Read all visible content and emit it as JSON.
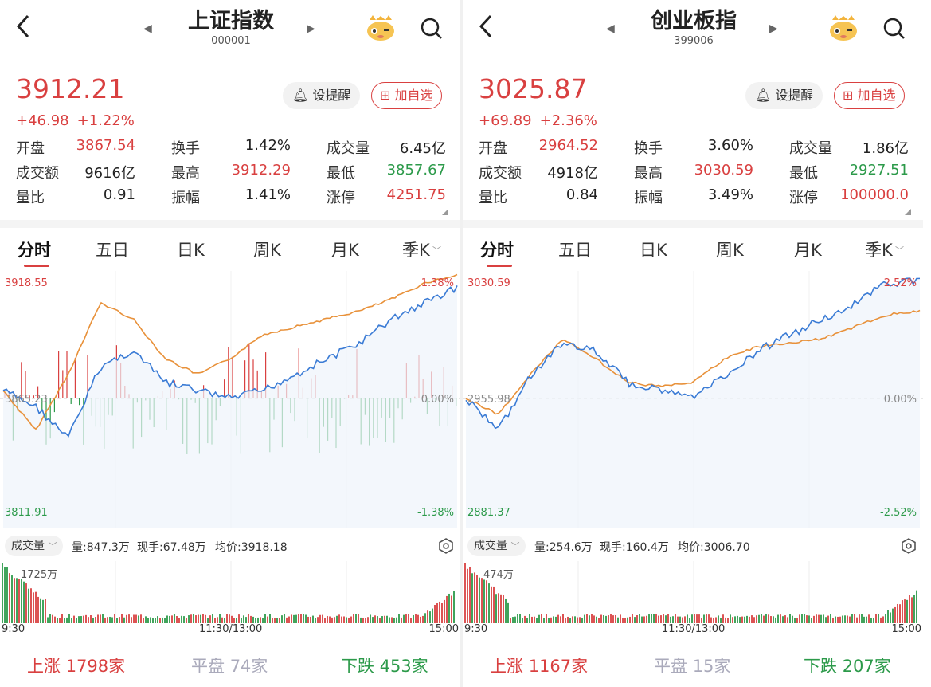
{
  "panels": [
    {
      "title": "上证指数",
      "code": "000001",
      "price": "3912.21",
      "change_abs": "+46.98",
      "change_pct": "+1.22%",
      "alert_btn": "设提醒",
      "add_btn": "加自选",
      "stats": [
        [
          {
            "label": "开盘",
            "value": "3867.54",
            "color": "red"
          },
          {
            "label": "换手",
            "value": "1.42%",
            "color": "dark"
          },
          {
            "label": "成交量",
            "value": "6.45亿",
            "color": "dark"
          }
        ],
        [
          {
            "label": "成交额",
            "value": "9616亿",
            "color": "dark"
          },
          {
            "label": "最高",
            "value": "3912.29",
            "color": "red"
          },
          {
            "label": "最低",
            "value": "3857.67",
            "color": "green"
          }
        ],
        [
          {
            "label": "量比",
            "value": "0.91",
            "color": "dark"
          },
          {
            "label": "振幅",
            "value": "1.41%",
            "color": "dark"
          },
          {
            "label": "涨停",
            "value": "4251.75",
            "color": "red"
          }
        ]
      ],
      "tabs": [
        "分时",
        "五日",
        "日K",
        "周K",
        "月K",
        "季K"
      ],
      "chart": {
        "y_top": "3918.55",
        "y_mid": "3865.23",
        "y_bottom": "3811.91",
        "pct_top": "1.38%",
        "pct_mid": "0.00%",
        "pct_bottom": "-1.38%"
      },
      "vol_tag": "成交量",
      "vol_info": {
        "volume": "量:847.3万",
        "current": "现手:67.48万",
        "avg": "均价:3918.18"
      },
      "vol_max": "1725万",
      "times": [
        "9:30",
        "11:30/13:00",
        "15:00"
      ],
      "breadth": {
        "up_label": "上涨",
        "up": "1798家",
        "flat_label": "平盘",
        "flat": "74家",
        "down_label": "下跌",
        "down": "453家"
      }
    },
    {
      "title": "创业板指",
      "code": "399006",
      "price": "3025.87",
      "change_abs": "+69.89",
      "change_pct": "+2.36%",
      "alert_btn": "设提醒",
      "add_btn": "加自选",
      "stats": [
        [
          {
            "label": "开盘",
            "value": "2964.52",
            "color": "red"
          },
          {
            "label": "换手",
            "value": "3.60%",
            "color": "dark"
          },
          {
            "label": "成交量",
            "value": "1.86亿",
            "color": "dark"
          }
        ],
        [
          {
            "label": "成交额",
            "value": "4918亿",
            "color": "dark"
          },
          {
            "label": "最高",
            "value": "3030.59",
            "color": "red"
          },
          {
            "label": "最低",
            "value": "2927.51",
            "color": "green"
          }
        ],
        [
          {
            "label": "量比",
            "value": "0.84",
            "color": "dark"
          },
          {
            "label": "振幅",
            "value": "3.49%",
            "color": "dark"
          },
          {
            "label": "涨停",
            "value": "100000.0",
            "color": "red"
          }
        ]
      ],
      "tabs": [
        "分时",
        "五日",
        "日K",
        "周K",
        "月K",
        "季K"
      ],
      "chart": {
        "y_top": "3030.59",
        "y_mid": "2955.98",
        "y_bottom": "2881.37",
        "pct_top": "2.52%",
        "pct_mid": "0.00%",
        "pct_bottom": "-2.52%"
      },
      "vol_tag": "成交量",
      "vol_info": {
        "volume": "量:254.6万",
        "current": "现手:160.4万",
        "avg": "均价:3006.70"
      },
      "vol_max": "474万",
      "times": [
        "9:30",
        "11:30/13:00",
        "15:00"
      ],
      "breadth": {
        "up_label": "上涨",
        "up": "1167家",
        "flat_label": "平盘",
        "flat": "15家",
        "down_label": "下跌",
        "down": "207家"
      }
    }
  ],
  "colors": {
    "up": "#d94040",
    "down": "#2c9a4a",
    "price_line": "#3a7bd5",
    "avg_line": "#e8913a"
  }
}
